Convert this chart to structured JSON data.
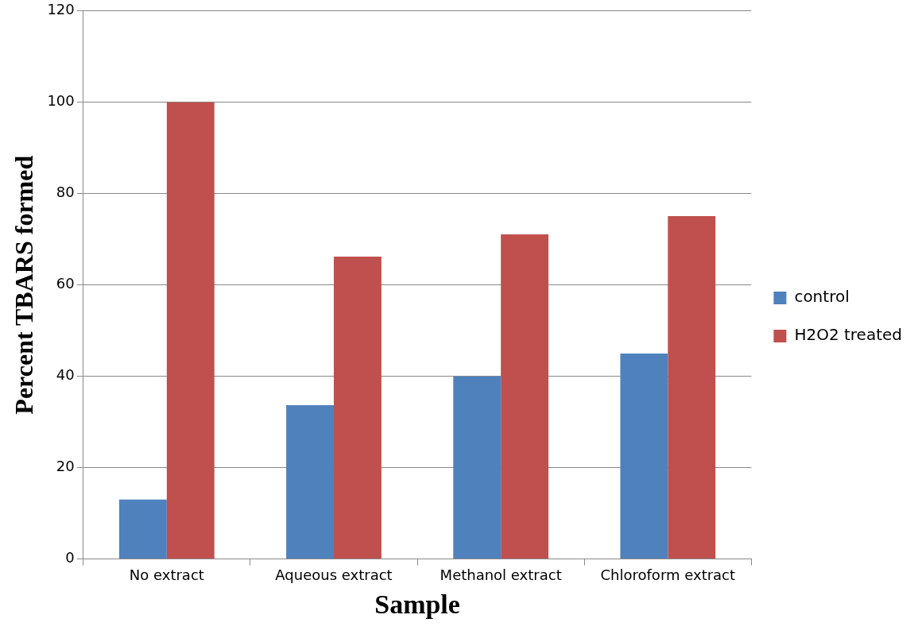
{
  "chart_data": {
    "type": "bar",
    "xlabel": "Sample",
    "ylabel": "Percent TBARS formed",
    "categories": [
      "No extract",
      "Aqueous extract",
      "Methanol extract",
      "Chloroform extract"
    ],
    "series": [
      {
        "name": "control",
        "color": "#4f81bd",
        "values": [
          13,
          33.7,
          40,
          45
        ]
      },
      {
        "name": "H2O2 treated",
        "color": "#c0504d",
        "values": [
          100,
          66.2,
          71.1,
          75.1
        ]
      }
    ],
    "ylim": [
      0,
      120
    ],
    "yticks": [
      0,
      20,
      40,
      60,
      80,
      100,
      120
    ],
    "grid": "y",
    "legend": "right"
  }
}
